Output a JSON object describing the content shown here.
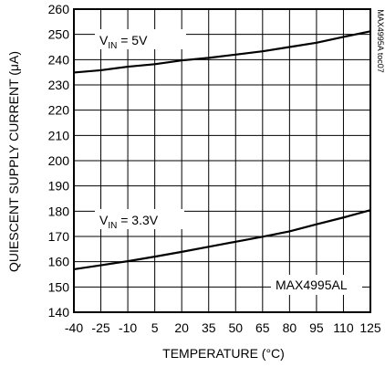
{
  "chart_data": {
    "type": "line",
    "xlabel": "TEMPERATURE (°C)",
    "ylabel": "QUIESCENT SUPPLY CURRENT (μA)",
    "xlim": [
      -40,
      125
    ],
    "ylim": [
      140,
      260
    ],
    "xticks": [
      -40,
      -25,
      -10,
      5,
      20,
      35,
      50,
      65,
      80,
      95,
      110,
      125
    ],
    "yticks": [
      140,
      150,
      160,
      170,
      180,
      190,
      200,
      210,
      220,
      230,
      240,
      250,
      260
    ],
    "grid": true,
    "series": [
      {
        "name": "VIN = 5V",
        "color": "#000000",
        "x": [
          -40,
          -25,
          -10,
          5,
          20,
          35,
          50,
          65,
          80,
          95,
          110,
          125
        ],
        "y": [
          234.9,
          235.8,
          237.2,
          238.2,
          239.7,
          240.7,
          242.0,
          243.3,
          245.0,
          246.7,
          249.0,
          251.2
        ]
      },
      {
        "name": "VIN = 3.3V",
        "color": "#000000",
        "x": [
          -40,
          -25,
          -10,
          5,
          20,
          35,
          50,
          65,
          80,
          95,
          110,
          125
        ],
        "y": [
          157.0,
          158.6,
          160.2,
          162.0,
          163.9,
          165.9,
          167.9,
          169.9,
          172.0,
          174.8,
          177.5,
          180.4
        ]
      }
    ],
    "annotations": {
      "vin5_main": "V",
      "vin5_sub": "IN",
      "vin5_rest": " = 5V",
      "vin33_main": "V",
      "vin33_sub": "IN",
      "vin33_rest": " = 3.3V",
      "part": "MAX4995AL",
      "code": "MAX4995A toc07"
    }
  }
}
